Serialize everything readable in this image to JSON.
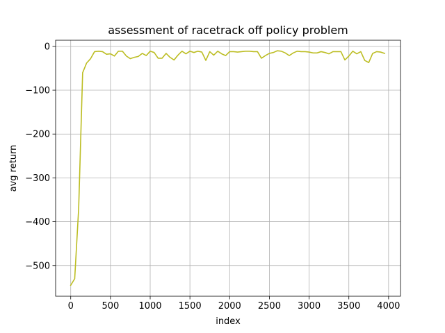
{
  "chart_data": {
    "type": "line",
    "title": "assessment of racetrack off policy problem",
    "xlabel": "index",
    "ylabel": "avg return",
    "xlim": [
      -190,
      4150
    ],
    "ylim": [
      -570,
      14
    ],
    "xticks": [
      0,
      500,
      1000,
      1500,
      2000,
      2500,
      3000,
      3500,
      4000
    ],
    "xtick_labels": [
      "0",
      "500",
      "1000",
      "1500",
      "2000",
      "2500",
      "3000",
      "3500",
      "4000"
    ],
    "yticks": [
      0,
      -100,
      -200,
      -300,
      -400,
      -500
    ],
    "ytick_labels": [
      "0",
      "−100",
      "−200",
      "−300",
      "−400",
      "−500"
    ],
    "grid": true,
    "series": [
      {
        "color": "#bcbd22",
        "x": [
          0,
          50,
          100,
          150,
          200,
          250,
          300,
          350,
          400,
          450,
          500,
          550,
          600,
          650,
          700,
          750,
          800,
          850,
          900,
          950,
          1000,
          1050,
          1100,
          1150,
          1200,
          1250,
          1300,
          1350,
          1400,
          1450,
          1500,
          1550,
          1600,
          1650,
          1700,
          1750,
          1800,
          1850,
          1900,
          1950,
          2000,
          2050,
          2100,
          2150,
          2200,
          2250,
          2300,
          2350,
          2400,
          2450,
          2500,
          2550,
          2600,
          2650,
          2700,
          2750,
          2800,
          2850,
          2900,
          2950,
          3000,
          3050,
          3100,
          3150,
          3200,
          3250,
          3300,
          3350,
          3400,
          3450,
          3500,
          3550,
          3600,
          3650,
          3700,
          3750,
          3800,
          3850,
          3900,
          3950
        ],
        "y": [
          -545,
          -530,
          -370,
          -60,
          -38,
          -28,
          -12,
          -11,
          -12,
          -18,
          -17,
          -22,
          -11,
          -11,
          -22,
          -28,
          -25,
          -23,
          -16,
          -21,
          -11,
          -14,
          -27,
          -27,
          -16,
          -25,
          -31,
          -20,
          -11,
          -17,
          -11,
          -14,
          -11,
          -13,
          -32,
          -12,
          -20,
          -11,
          -17,
          -21,
          -12,
          -12,
          -13,
          -12,
          -11,
          -11,
          -12,
          -12,
          -27,
          -21,
          -16,
          -14,
          -10,
          -11,
          -15,
          -21,
          -15,
          -11,
          -12,
          -12,
          -13,
          -15,
          -15,
          -12,
          -14,
          -17,
          -12,
          -12,
          -12,
          -31,
          -22,
          -11,
          -17,
          -12,
          -32,
          -37,
          -16,
          -12,
          -13,
          -16
        ]
      }
    ]
  }
}
